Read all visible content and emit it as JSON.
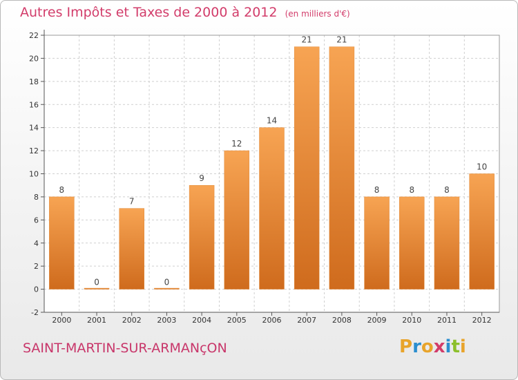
{
  "header": {
    "title": "Autres Impôts et Taxes de 2000 à 2012",
    "subtitle": "(en milliers d'€)"
  },
  "footer": {
    "city": "SAINT-MARTIN-SUR-ARMANçON",
    "logo": "Proxiti"
  },
  "colors": {
    "accent": "#d23c6a",
    "bar_light": "#f7a453",
    "bar_dark": "#cf6b1d",
    "logo_letters": [
      "#e8a42b",
      "#2b8ecf",
      "#e8a42b",
      "#d23c6a",
      "#2b8ecf",
      "#8cbf2b",
      "#e8a42b"
    ]
  },
  "chart_data": {
    "type": "bar",
    "title": "Autres Impôts et Taxes de 2000 à 2012",
    "subtitle": "(en milliers d'€)",
    "categories": [
      "2000",
      "2001",
      "2002",
      "2003",
      "2004",
      "2005",
      "2006",
      "2007",
      "2008",
      "2009",
      "2010",
      "2011",
      "2012"
    ],
    "values": [
      8,
      0,
      7,
      0,
      9,
      12,
      14,
      21,
      21,
      8,
      8,
      8,
      10
    ],
    "data_labels": [
      "8",
      "0",
      "7",
      "0",
      "9",
      "12",
      "14",
      "21",
      "21",
      "8",
      "8",
      "8",
      "10"
    ],
    "yticks": [
      "-2",
      "0",
      "2",
      "4",
      "6",
      "8",
      "10",
      "12",
      "14",
      "16",
      "18",
      "20",
      "22"
    ],
    "ylim": [
      -2,
      22
    ],
    "grid": true,
    "legend": "none"
  }
}
